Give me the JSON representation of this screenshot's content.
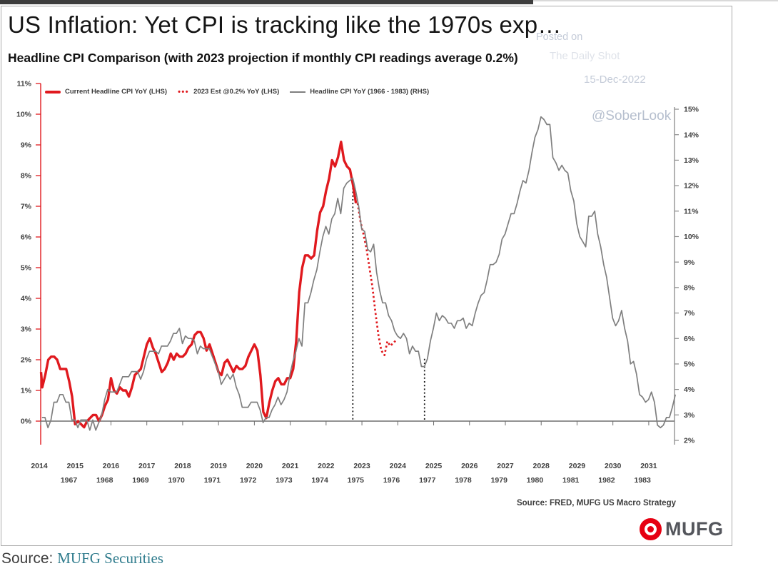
{
  "article": {
    "title": "US Inflation: Yet CPI is tracking like the 1970s exp…",
    "caption_prefix": "Source:",
    "caption_link": "MUFG Securities"
  },
  "watermarks": {
    "posted_on": "Posted on",
    "source_site": "The Daily Shot",
    "date": "15-Dec-2022",
    "handle": "@SoberLook"
  },
  "colors": {
    "series_red": "#e0191e",
    "series_gray": "#7f7f7f",
    "axis_text": "#3f3f3f",
    "watermark": "#c4cbd8",
    "brand_red": "#e60012",
    "link_teal": "#2e7b8c"
  },
  "chart_data": {
    "type": "line",
    "title": "Headline CPI Comparison (with 2023 projection if monthly CPI readings average 0.2%)",
    "source_note": "Source: FRED, MUFG US Macro Strategy",
    "logo_text": "MUFG",
    "legend_position": "top-left",
    "grid": false,
    "lhs_axis": {
      "label": "LHS",
      "min": 0,
      "max": 11,
      "tick_labels": [
        "0%",
        "1%",
        "2%",
        "3%",
        "4%",
        "5%",
        "6%",
        "7%",
        "8%",
        "9%",
        "10%",
        "11%"
      ]
    },
    "rhs_axis": {
      "label": "RHS",
      "min": 2,
      "max": 15,
      "tick_labels": [
        "2%",
        "3%",
        "4%",
        "5%",
        "6%",
        "7%",
        "8%",
        "9%",
        "10%",
        "11%",
        "12%",
        "13%",
        "14%",
        "15%"
      ]
    },
    "x_axis": {
      "top_labels": [
        "2014",
        "2015",
        "2016",
        "2017",
        "2018",
        "2019",
        "2020",
        "2021",
        "2022",
        "2023",
        "2024",
        "2025",
        "2026",
        "2027",
        "2028",
        "2029",
        "2030",
        "2031"
      ],
      "bottom_labels": [
        "1967",
        "1968",
        "1969",
        "1970",
        "1971",
        "1972",
        "1973",
        "1974",
        "1975",
        "1976",
        "1977",
        "1978",
        "1979",
        "1980",
        "1981",
        "1982",
        "1983"
      ]
    },
    "reference_lines": [
      {
        "x_year": 1974.92,
        "x_scale": "lower",
        "y_top_rhs": 12.2,
        "style": "dotted"
      },
      {
        "x_year": 1976.92,
        "x_scale": "lower",
        "y_top_rhs": 5.2,
        "style": "dotted"
      }
    ],
    "series": [
      {
        "name": "Current Headline CPI YoY (LHS)",
        "axis": "LHS",
        "x_scale": "upper",
        "style": "solid",
        "color": "#e0191e",
        "x_start": 2014.0,
        "x_step_months": 1,
        "values": [
          1.6,
          1.1,
          1.5,
          2.0,
          2.1,
          2.1,
          2.0,
          1.7,
          1.7,
          1.7,
          1.3,
          0.8,
          -0.1,
          0.0,
          -0.1,
          -0.2,
          0.0,
          0.1,
          0.2,
          0.2,
          0.0,
          0.2,
          0.5,
          0.7,
          1.4,
          1.0,
          0.9,
          1.1,
          1.0,
          1.0,
          0.8,
          1.1,
          1.5,
          1.6,
          1.7,
          2.1,
          2.5,
          2.7,
          2.4,
          2.2,
          1.9,
          1.6,
          1.7,
          1.9,
          2.2,
          2.0,
          2.2,
          2.1,
          2.1,
          2.2,
          2.4,
          2.5,
          2.8,
          2.9,
          2.9,
          2.7,
          2.3,
          2.5,
          2.2,
          1.9,
          1.6,
          1.5,
          1.9,
          2.0,
          1.8,
          1.6,
          1.8,
          1.7,
          1.7,
          1.8,
          2.1,
          2.3,
          2.5,
          2.3,
          1.5,
          0.3,
          0.1,
          0.6,
          1.0,
          1.3,
          1.4,
          1.2,
          1.2,
          1.4,
          1.4,
          1.7,
          2.6,
          4.2,
          5.0,
          5.4,
          5.4,
          5.3,
          5.4,
          6.2,
          6.8,
          7.0,
          7.5,
          7.9,
          8.5,
          8.3,
          8.6,
          9.1,
          8.5,
          8.3,
          8.2,
          7.7,
          7.1
        ]
      },
      {
        "name": "2023 Est @0.2% YoY (LHS)",
        "axis": "LHS",
        "x_scale": "upper",
        "style": "dotted",
        "color": "#e0191e",
        "x": [
          2022.88,
          2022.96,
          2023.04,
          2023.13,
          2023.21,
          2023.29,
          2023.38,
          2023.46,
          2023.54,
          2023.63,
          2023.71,
          2023.79,
          2023.88,
          2023.96
        ],
        "values": [
          7.1,
          6.5,
          6.1,
          5.6,
          5.0,
          4.4,
          3.5,
          2.8,
          2.3,
          2.15,
          2.6,
          2.45,
          2.55,
          2.65
        ]
      },
      {
        "name": "Headline CPI YoY (1966 - 1983) (RHS)",
        "axis": "RHS",
        "x_scale": "lower",
        "style": "solid",
        "color": "#7f7f7f",
        "x_start": 1966.25,
        "x_step_months": 1,
        "values": [
          2.9,
          2.9,
          2.5,
          2.8,
          3.5,
          3.5,
          3.8,
          3.8,
          3.5,
          3.5,
          2.8,
          2.8,
          2.5,
          2.8,
          2.8,
          2.8,
          2.4,
          2.8,
          2.4,
          2.7,
          3.0,
          3.6,
          4.0,
          3.9,
          3.9,
          3.9,
          4.2,
          4.5,
          4.5,
          4.5,
          4.7,
          4.7,
          4.7,
          4.4,
          4.7,
          5.2,
          5.5,
          5.5,
          5.5,
          5.4,
          5.7,
          5.7,
          5.7,
          5.9,
          6.2,
          6.2,
          6.4,
          5.8,
          6.1,
          6.0,
          6.0,
          5.9,
          5.4,
          5.7,
          5.6,
          5.6,
          5.6,
          5.3,
          5.0,
          4.7,
          4.2,
          4.4,
          4.6,
          4.4,
          4.6,
          4.1,
          3.8,
          3.3,
          3.3,
          3.3,
          3.5,
          3.5,
          3.5,
          3.2,
          2.7,
          2.9,
          2.9,
          3.2,
          3.4,
          3.7,
          3.4,
          3.6,
          3.9,
          4.6,
          5.1,
          5.5,
          6.0,
          5.7,
          7.4,
          7.4,
          7.8,
          8.3,
          8.7,
          9.4,
          10.0,
          10.4,
          10.1,
          10.7,
          10.9,
          11.5,
          10.9,
          11.9,
          12.1,
          12.2,
          12.3,
          11.8,
          11.2,
          10.3,
          10.2,
          9.5,
          9.4,
          9.7,
          8.6,
          7.9,
          7.4,
          7.4,
          6.9,
          6.7,
          6.3,
          6.1,
          6.0,
          6.2,
          6.0,
          5.4,
          5.7,
          5.5,
          5.5,
          4.9,
          4.9,
          5.2,
          5.9,
          6.4,
          7.0,
          6.7,
          6.9,
          6.8,
          6.6,
          6.6,
          6.4,
          6.7,
          6.7,
          6.8,
          6.4,
          6.6,
          6.5,
          7.0,
          7.4,
          7.7,
          7.8,
          8.3,
          8.9,
          8.9,
          9.0,
          9.3,
          9.9,
          10.1,
          10.5,
          10.9,
          10.9,
          11.3,
          11.8,
          12.2,
          12.1,
          12.6,
          13.3,
          13.9,
          14.2,
          14.7,
          14.6,
          14.4,
          14.4,
          13.1,
          12.9,
          12.6,
          12.8,
          12.6,
          12.5,
          11.8,
          11.4,
          10.5,
          10.0,
          9.8,
          9.6,
          10.8,
          10.8,
          11.0,
          10.1,
          9.6,
          8.9,
          8.4,
          7.6,
          6.8,
          6.5,
          6.7,
          7.1,
          6.4,
          5.9,
          5.0,
          5.1,
          4.6,
          3.8,
          3.7,
          3.5,
          3.6,
          3.9,
          3.5,
          2.6,
          2.5,
          2.6,
          2.9,
          2.9,
          3.3,
          3.8
        ]
      }
    ]
  }
}
